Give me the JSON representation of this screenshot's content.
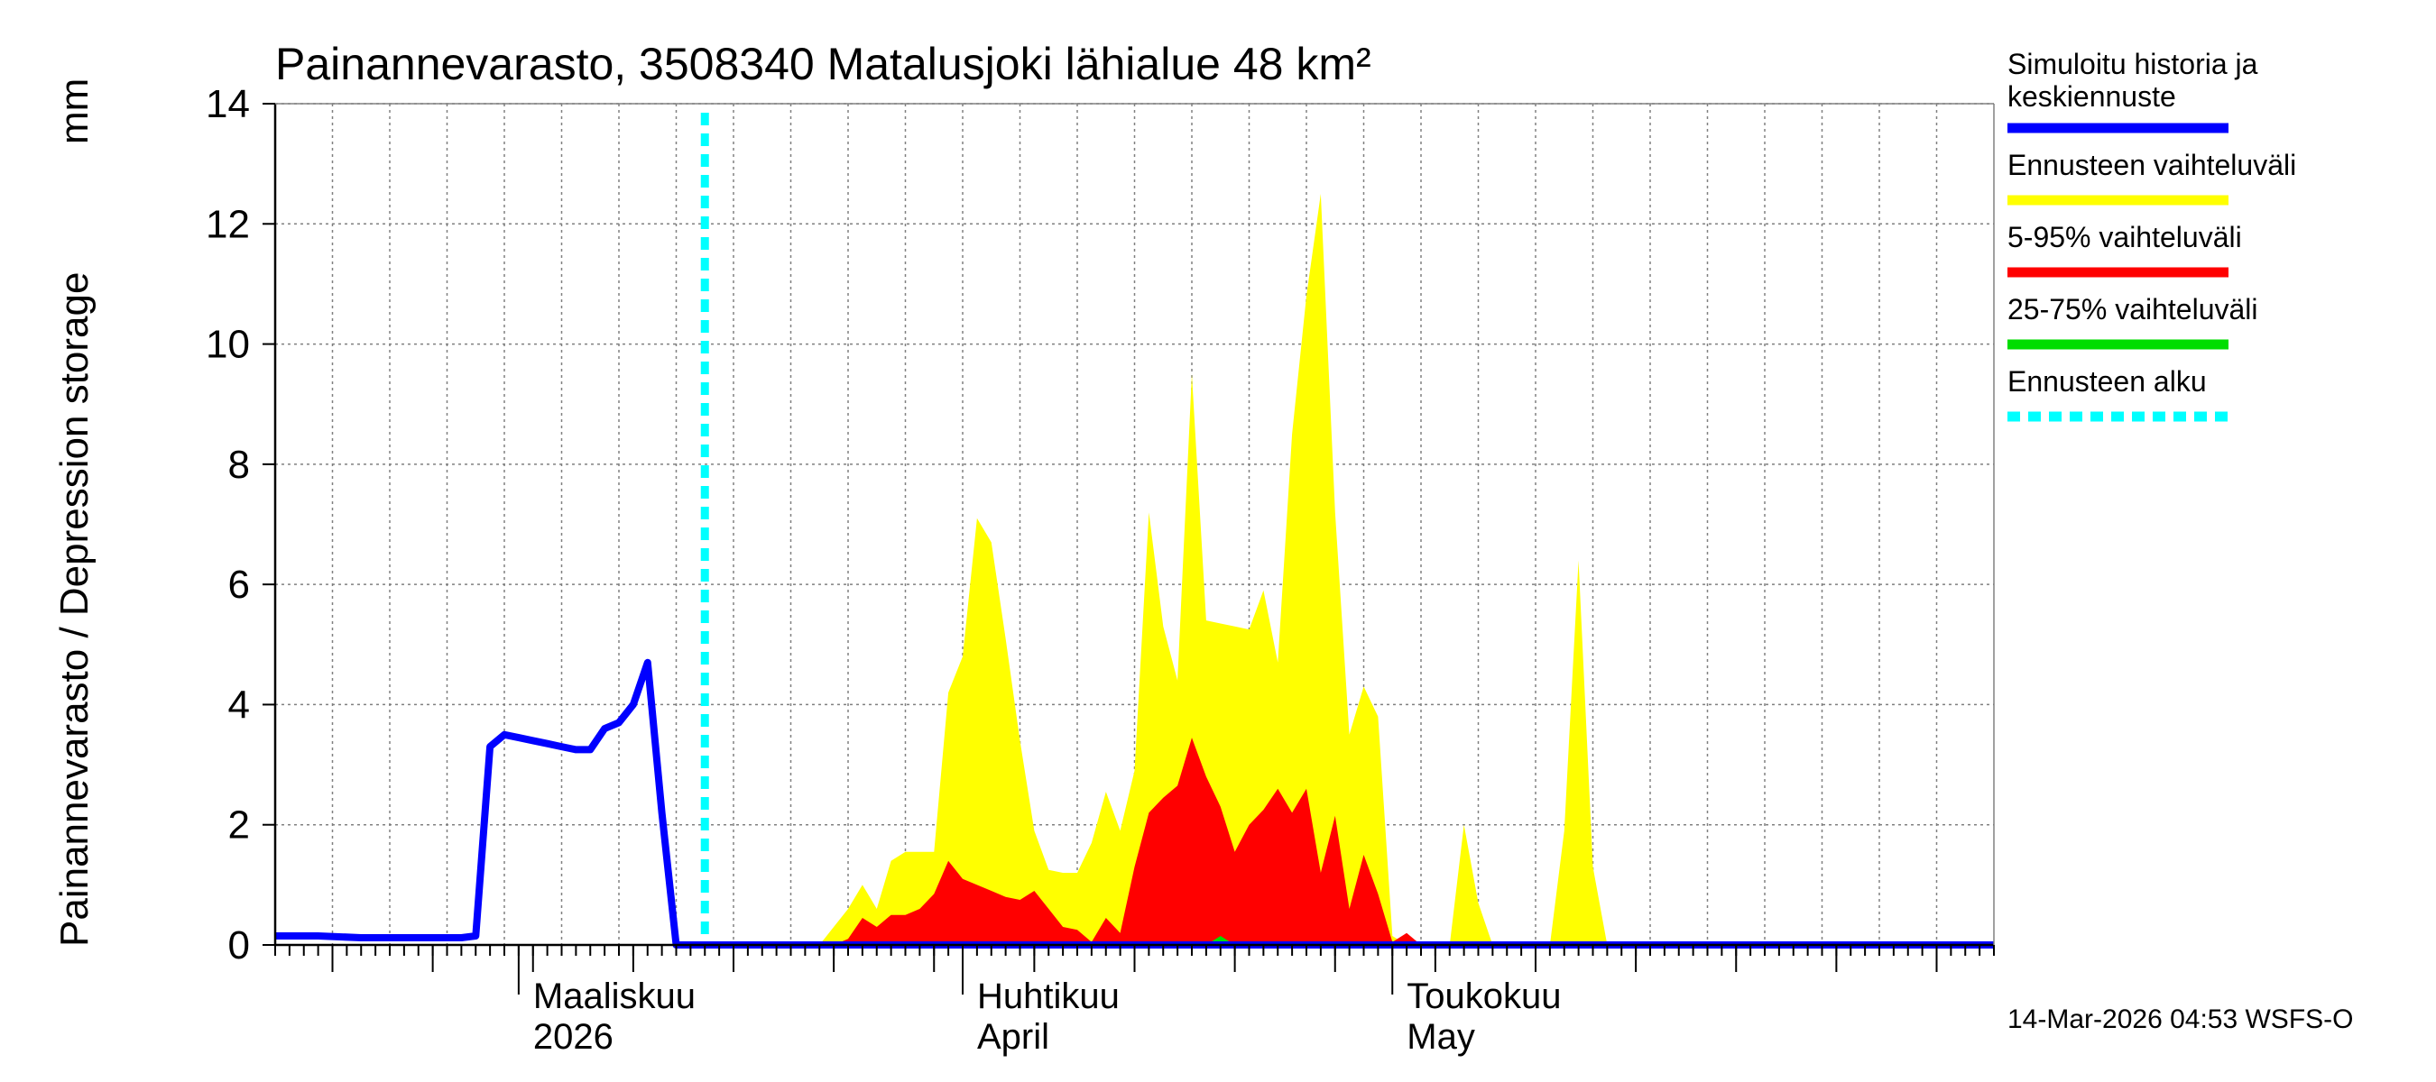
{
  "chart_data": {
    "type": "area",
    "title": "Painannevarasto, 3508340 Matalusjoki lähialue 48 km²",
    "ylabel": "Painannevarasto / Depression storage",
    "yunit": "mm",
    "ylim": [
      0,
      14
    ],
    "yticks": [
      0,
      2,
      4,
      6,
      8,
      10,
      12,
      14
    ],
    "xlim_days": [
      0,
      120
    ],
    "grid": "on",
    "legend_position": "right",
    "month_labels": [
      {
        "line1": "Maaliskuu",
        "line2": "2026",
        "day": 17
      },
      {
        "line1": "Huhtikuu",
        "line2": "April",
        "day": 48
      },
      {
        "line1": "Toukokuu",
        "line2": "May",
        "day": 78
      }
    ],
    "forecast_start_day": 30,
    "timestamp": "14-Mar-2026 04:53 WSFS-O",
    "legend": [
      {
        "label": "Simuloitu historia ja",
        "label2": "keskiennuste",
        "color": "#0000ff",
        "style": "solid"
      },
      {
        "label": "Ennusteen vaihteluväli",
        "color": "#ffff00",
        "style": "solid"
      },
      {
        "label": "5-95% vaihteluväli",
        "color": "#ff0000",
        "style": "solid"
      },
      {
        "label": "25-75% vaihteluväli",
        "color": "#00dd00",
        "style": "solid"
      },
      {
        "label": "Ennusteen alku",
        "color": "#00ffff",
        "style": "dashed"
      }
    ],
    "series": [
      {
        "name": "Ennusteen vaihteluväli",
        "color": "#ffff00",
        "x": [
          30,
          31,
          32,
          33,
          34,
          35,
          36,
          37,
          38,
          39,
          40,
          41,
          42,
          43,
          44,
          45,
          46,
          47,
          48,
          49,
          50,
          51,
          52,
          53,
          54,
          55,
          56,
          57,
          58,
          59,
          60,
          61,
          62,
          63,
          64,
          65,
          66,
          67,
          68,
          69,
          70,
          71,
          72,
          73,
          74,
          75,
          76,
          77,
          78,
          79,
          80,
          81,
          82,
          83,
          84,
          85,
          86,
          87,
          88,
          89,
          90,
          91,
          92,
          93,
          94,
          95,
          96,
          97,
          98,
          99,
          100,
          101,
          102,
          103,
          104,
          105,
          106,
          107,
          108,
          109,
          110,
          111,
          112,
          113,
          114,
          115,
          116,
          117,
          118,
          119,
          120
        ],
        "y": [
          0,
          0,
          0,
          0,
          0,
          0,
          0,
          0,
          0,
          0.3,
          0.6,
          1.0,
          0.6,
          1.4,
          1.55,
          1.55,
          1.55,
          4.2,
          4.8,
          7.1,
          6.7,
          5.1,
          3.4,
          1.9,
          1.25,
          1.2,
          1.2,
          1.7,
          2.55,
          1.9,
          2.9,
          7.2,
          5.3,
          4.4,
          9.5,
          5.4,
          5.35,
          5.3,
          5.25,
          5.9,
          4.7,
          8.5,
          10.8,
          12.5,
          7.2,
          3.5,
          4.3,
          3.8,
          0.15,
          0,
          0,
          0,
          0,
          2.0,
          0.7,
          0,
          0,
          0,
          0,
          0,
          1.9,
          6.4,
          1.3,
          0,
          0,
          0,
          0,
          0,
          0,
          0,
          0,
          0,
          0,
          0,
          0,
          0,
          0,
          0,
          0,
          0,
          0,
          0,
          0,
          0,
          0,
          0,
          0,
          0,
          0,
          0,
          0
        ]
      },
      {
        "name": "5-95% vaihteluväli",
        "color": "#ff0000",
        "x": [
          30,
          31,
          32,
          33,
          34,
          35,
          36,
          37,
          38,
          39,
          40,
          41,
          42,
          43,
          44,
          45,
          46,
          47,
          48,
          49,
          50,
          51,
          52,
          53,
          54,
          55,
          56,
          57,
          58,
          59,
          60,
          61,
          62,
          63,
          64,
          65,
          66,
          67,
          68,
          69,
          70,
          71,
          72,
          73,
          74,
          75,
          76,
          77,
          78,
          79,
          80,
          81,
          82,
          83,
          84,
          85,
          86,
          87,
          88,
          89,
          90,
          91,
          92,
          93,
          94,
          95,
          96,
          97,
          98,
          99,
          100,
          101,
          102,
          103,
          104,
          105,
          106,
          107,
          108,
          109,
          110,
          111,
          112,
          113,
          114,
          115,
          116,
          117,
          118,
          119,
          120
        ],
        "y": [
          0,
          0,
          0,
          0,
          0,
          0,
          0,
          0,
          0,
          0,
          0.1,
          0.45,
          0.3,
          0.5,
          0.5,
          0.6,
          0.85,
          1.4,
          1.1,
          1.0,
          0.9,
          0.8,
          0.75,
          0.9,
          0.6,
          0.3,
          0.25,
          0.05,
          0.45,
          0.2,
          1.3,
          2.2,
          2.45,
          2.65,
          3.45,
          2.8,
          2.3,
          1.55,
          2.0,
          2.25,
          2.6,
          2.2,
          2.6,
          1.2,
          2.15,
          0.6,
          1.5,
          0.85,
          0.05,
          0.2,
          0,
          0,
          0,
          0,
          0,
          0,
          0,
          0,
          0,
          0,
          0,
          0,
          0,
          0,
          0,
          0,
          0,
          0,
          0,
          0,
          0,
          0,
          0,
          0,
          0,
          0,
          0,
          0,
          0,
          0,
          0,
          0,
          0,
          0,
          0,
          0,
          0,
          0,
          0,
          0,
          0
        ]
      },
      {
        "name": "25-75% vaihteluväli",
        "color": "#00dd00",
        "x": [
          30,
          31,
          32,
          33,
          34,
          35,
          36,
          37,
          38,
          39,
          40,
          41,
          42,
          43,
          44,
          45,
          46,
          47,
          48,
          49,
          50,
          51,
          52,
          53,
          54,
          55,
          56,
          57,
          58,
          59,
          60,
          61,
          62,
          63,
          64,
          65,
          66,
          67,
          68,
          69,
          70,
          71,
          72,
          73,
          74,
          75,
          76,
          77,
          78,
          79,
          80,
          81,
          82,
          83,
          84,
          85,
          86,
          87,
          88,
          89,
          90,
          91,
          92,
          93,
          94,
          95,
          96,
          97,
          98,
          99,
          100,
          101,
          102,
          103,
          104,
          105,
          106,
          107,
          108,
          109,
          110,
          111,
          112,
          113,
          114,
          115,
          116,
          117,
          118,
          119,
          120
        ],
        "y": [
          0,
          0,
          0,
          0,
          0,
          0,
          0,
          0,
          0,
          0,
          0,
          0,
          0,
          0,
          0,
          0,
          0,
          0,
          0,
          0,
          0,
          0,
          0,
          0,
          0,
          0,
          0,
          0,
          0,
          0,
          0,
          0,
          0,
          0,
          0,
          0,
          0.15,
          0,
          0,
          0,
          0,
          0,
          0,
          0,
          0,
          0,
          0,
          0,
          0,
          0,
          0,
          0,
          0,
          0,
          0,
          0,
          0,
          0,
          0,
          0,
          0,
          0,
          0,
          0,
          0,
          0,
          0,
          0,
          0,
          0,
          0,
          0,
          0,
          0,
          0,
          0,
          0,
          0,
          0,
          0,
          0,
          0,
          0,
          0,
          0,
          0,
          0,
          0,
          0,
          0,
          0
        ]
      },
      {
        "name": "Simuloitu historia ja keskiennuste",
        "color": "#0000ff",
        "x": [
          0,
          3,
          6,
          9,
          13,
          14,
          15,
          16,
          17,
          18,
          19,
          20,
          21,
          22,
          23,
          24,
          25,
          26,
          27,
          28,
          29,
          30,
          31,
          35,
          40,
          45,
          50,
          55,
          60,
          65,
          70,
          75,
          80,
          85,
          90,
          95,
          100,
          105,
          110,
          115,
          120
        ],
        "y": [
          0.15,
          0.15,
          0.12,
          0.12,
          0.12,
          0.15,
          3.3,
          3.5,
          3.45,
          3.4,
          3.35,
          3.3,
          3.25,
          3.25,
          3.6,
          3.7,
          4.0,
          4.7,
          2.2,
          0,
          0,
          0,
          0,
          0,
          0,
          0,
          0,
          0,
          0,
          0,
          0,
          0,
          0,
          0,
          0,
          0,
          0,
          0,
          0,
          0,
          0
        ]
      }
    ]
  }
}
